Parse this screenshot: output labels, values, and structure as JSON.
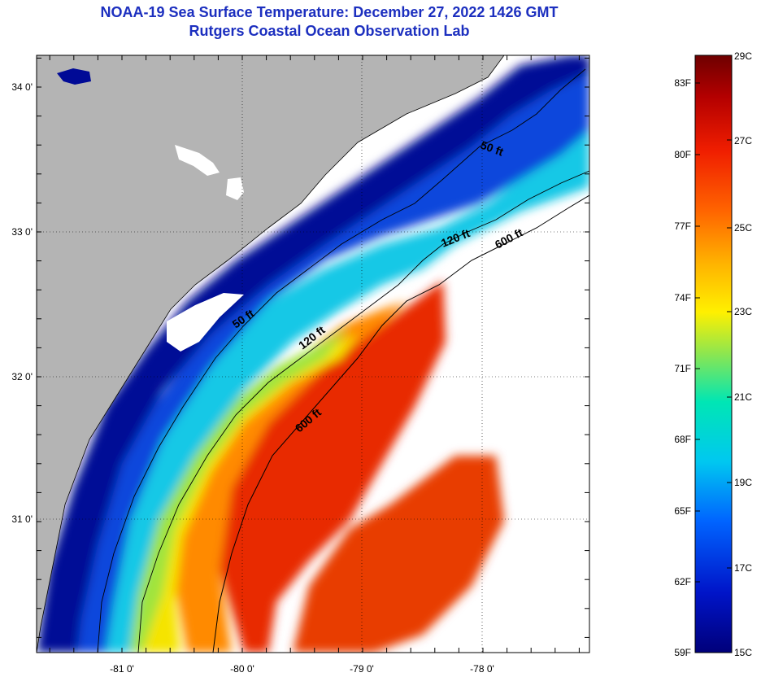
{
  "header": {
    "title": "NOAA-19 Sea Surface Temperature:  December 27, 2022 1426 GMT",
    "subtitle": "Rutgers Coastal Ocean Observation Lab"
  },
  "map": {
    "lat_ticks": [
      "34 0'",
      "33 0'",
      "32 0'",
      "31 0'"
    ],
    "lon_ticks": [
      "-81 0'",
      "-80 0'",
      "-79 0'",
      "-78 0'"
    ],
    "contours": [
      "50 ft",
      "120 ft",
      "600 ft",
      "50 ft",
      "120 ft",
      "600 ft"
    ],
    "colors": {
      "land": "#b4b4b4",
      "nodata": "#ffffff",
      "deep_blue": "#00008c",
      "blue": "#0032c8",
      "cyan": "#00c8dc",
      "green": "#9be632",
      "yellow": "#ffe600",
      "orange": "#ff8200",
      "red": "#e61e00"
    }
  },
  "colorbar": {
    "fahrenheit": [
      "83F",
      "80F",
      "77F",
      "74F",
      "71F",
      "68F",
      "65F",
      "62F",
      "59F"
    ],
    "celsius": [
      "29C",
      "27C",
      "25C",
      "23C",
      "21C",
      "19C",
      "17C",
      "15C"
    ]
  }
}
